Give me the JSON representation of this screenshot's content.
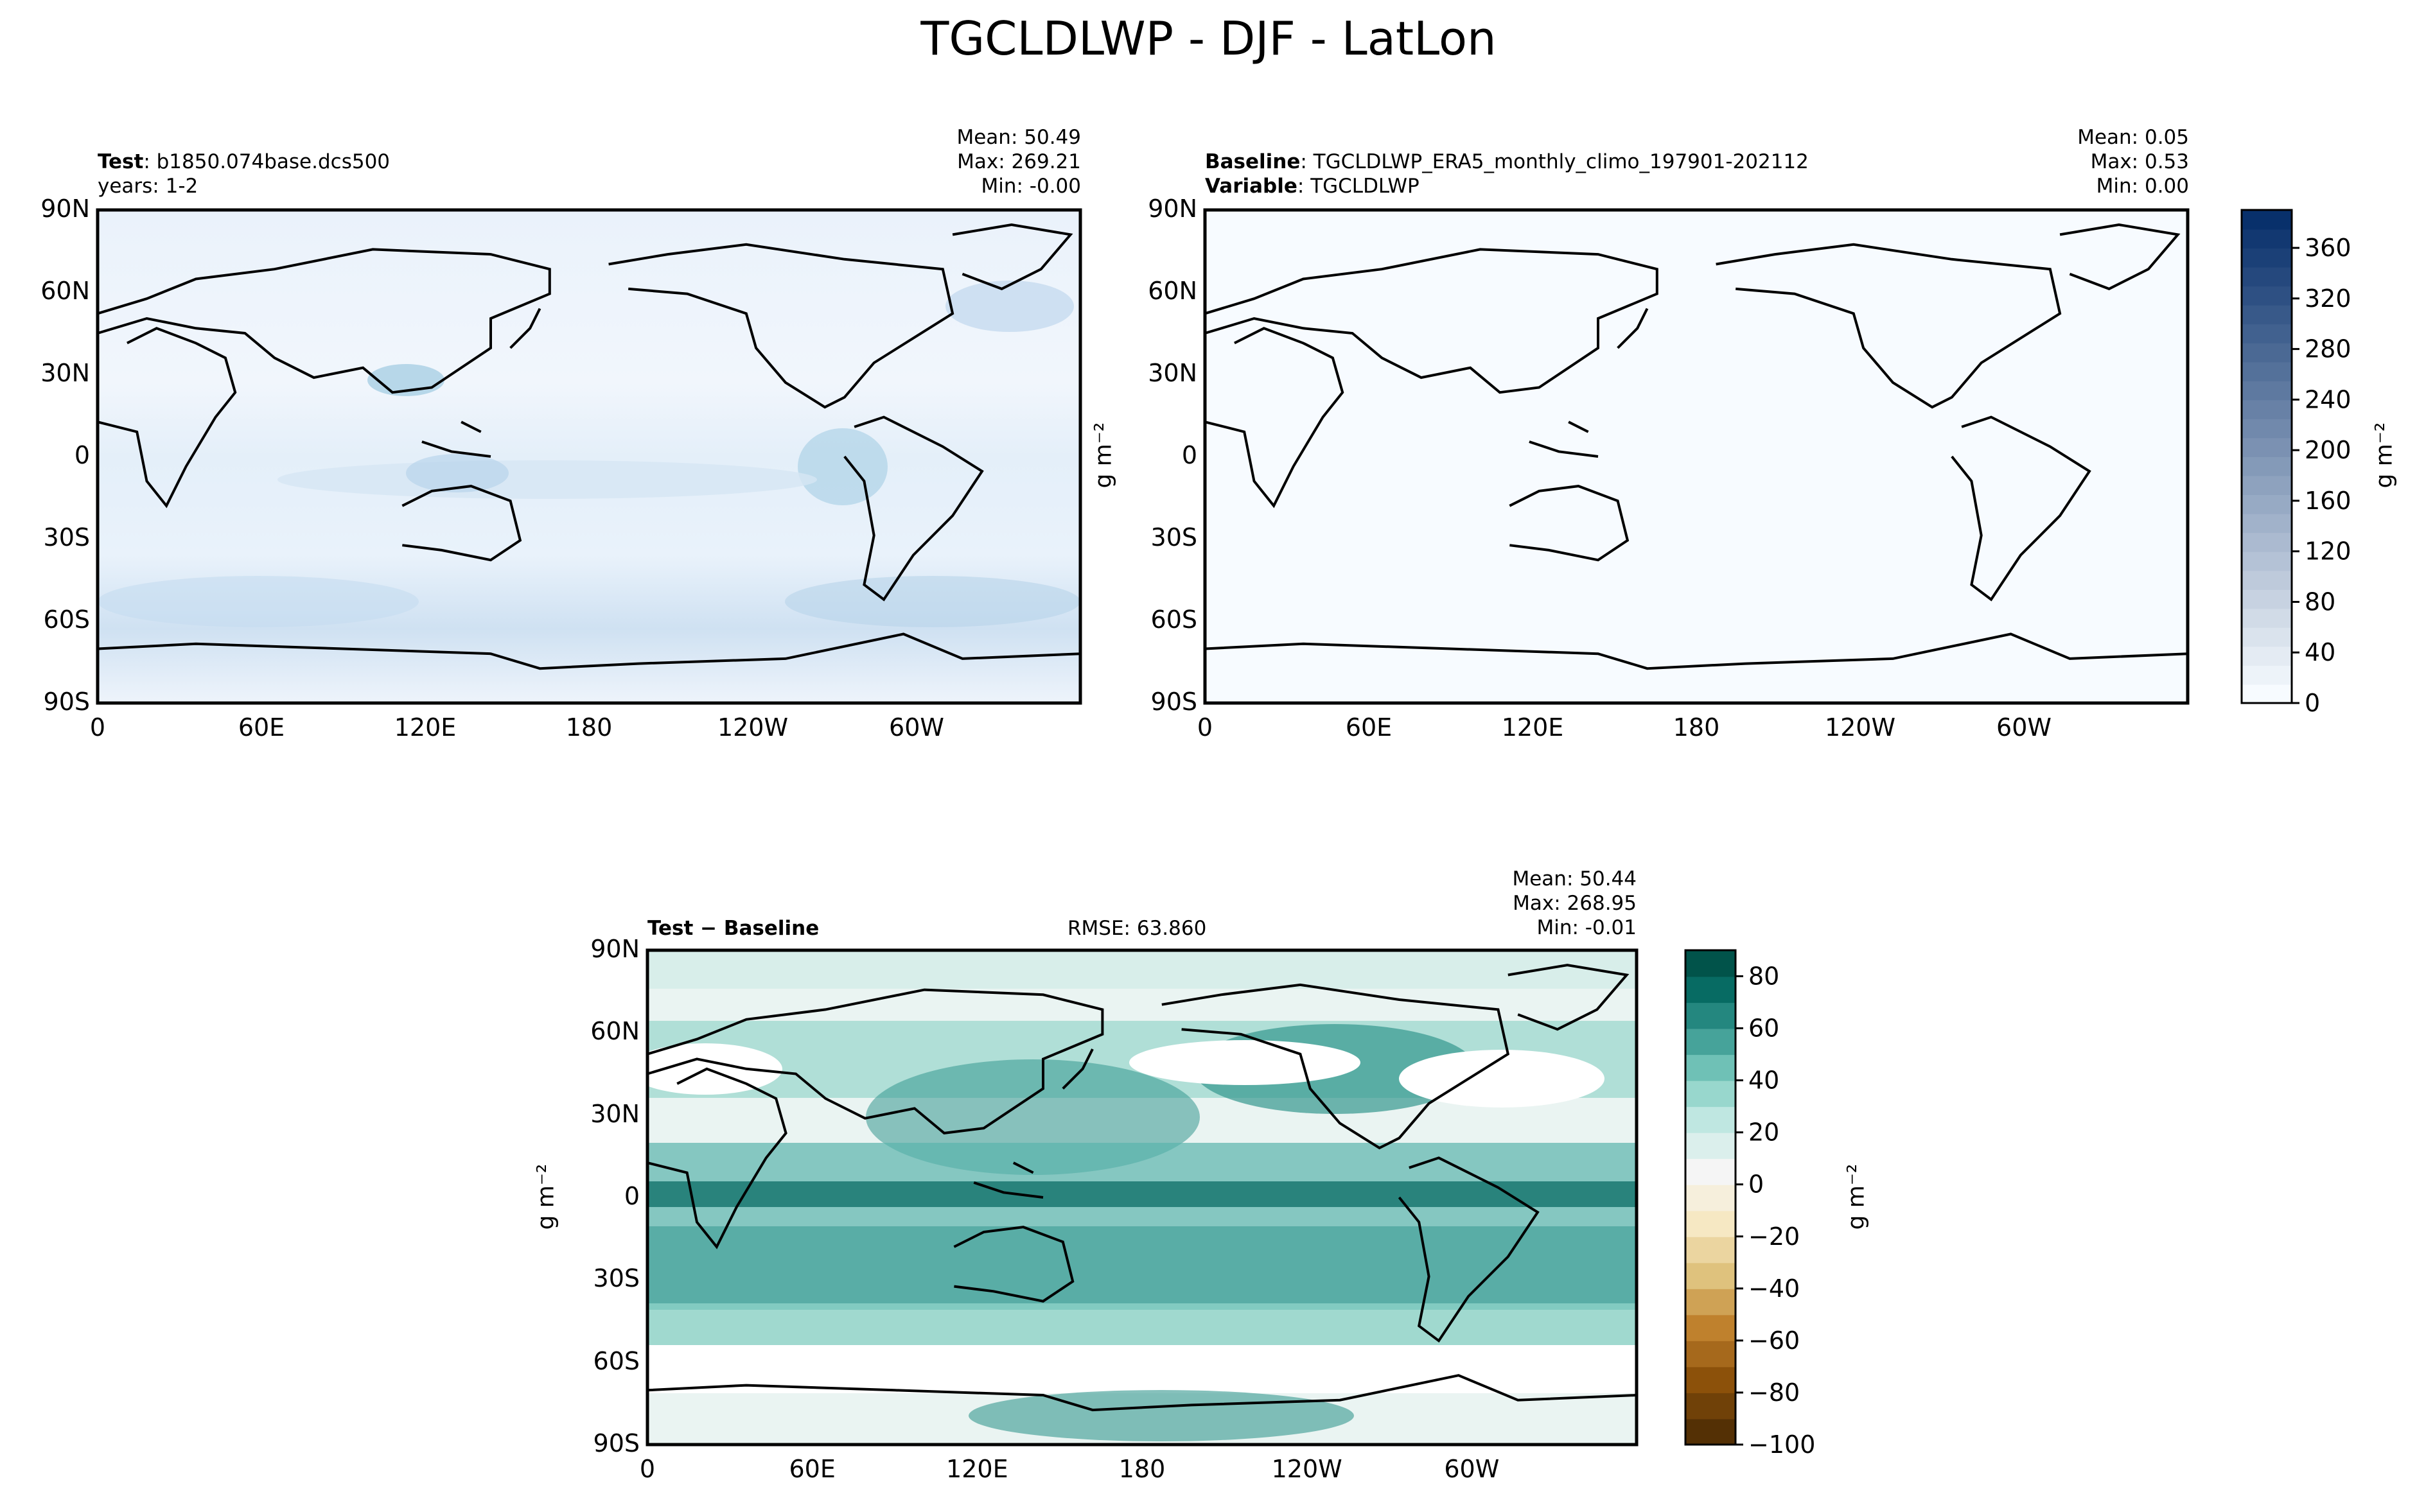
{
  "title": "TGCLDLWP - DJF - LatLon",
  "panels": {
    "test": {
      "label_bold": "Test",
      "label_text": ": b1850.074base.dcs500",
      "years": "years: 1-2",
      "stats": [
        "Mean: 50.49",
        "Max: 269.21",
        "Min: -0.00"
      ]
    },
    "baseline": {
      "baseline_bold": "Baseline",
      "baseline_text": ": TGCLDLWP_ERA5_monthly_climo_197901-202112",
      "variable_bold": "Variable",
      "variable_text": ": TGCLDLWP",
      "stats": [
        "Mean:  0.05",
        "Max:  0.53",
        "Min:  0.00"
      ],
      "units": "g m⁻²"
    },
    "diff": {
      "label_bold": "Test − Baseline",
      "rmse": "RMSE: 63.860",
      "stats": [
        "Mean: 50.44",
        "Max: 268.95",
        "Min: -0.01"
      ],
      "units_left": "g m⁻²",
      "units_right": "g m⁻²"
    }
  },
  "lat_ticks": [
    "90N",
    "60N",
    "30N",
    "0",
    "30S",
    "60S",
    "90S"
  ],
  "lon_ticks": [
    "0",
    "60E",
    "120E",
    "180",
    "120W",
    "60W"
  ],
  "colorbar_top": {
    "ticks": [
      "0",
      "40",
      "80",
      "120",
      "160",
      "200",
      "240",
      "280",
      "320",
      "360"
    ],
    "units": "g m⁻²",
    "range": [
      0,
      390
    ],
    "colors": [
      "#f7fbff",
      "#08306b"
    ]
  },
  "colorbar_diff": {
    "ticks": [
      "−100",
      "−80",
      "−60",
      "−40",
      "−20",
      "0",
      "20",
      "40",
      "60",
      "80"
    ],
    "range": [
      -100,
      90
    ],
    "colors_negative": [
      "#543005",
      "#8c510a",
      "#bf812d",
      "#dfc27d",
      "#f6e8c3",
      "#f5f5f5"
    ],
    "colors_positive": [
      "#f5f5f5",
      "#c7eae5",
      "#80cdc1",
      "#35978f",
      "#01665e",
      "#003c30"
    ]
  },
  "chart_data": [
    {
      "type": "heatmap",
      "title": "Test",
      "variable": "TGCLDLWP",
      "xlabel": "",
      "ylabel": "",
      "xlim_deg": [
        0,
        360
      ],
      "ylim_deg": [
        -90,
        90
      ],
      "mean": 50.49,
      "max": 269.21,
      "min": -0.0,
      "colormap": "Blues",
      "clim": [
        0,
        390
      ]
    },
    {
      "type": "heatmap",
      "title": "Baseline",
      "variable": "TGCLDLWP",
      "mean": 0.05,
      "max": 0.53,
      "min": 0.0,
      "colormap": "Blues",
      "clim": [
        0,
        390
      ]
    },
    {
      "type": "heatmap",
      "title": "Test − Baseline",
      "mean": 50.44,
      "max": 268.95,
      "min": -0.01,
      "rmse": 63.86,
      "colormap": "BrBG",
      "clim": [
        -100,
        90
      ]
    }
  ]
}
